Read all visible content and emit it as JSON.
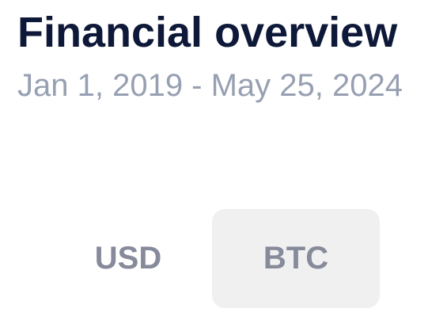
{
  "header": {
    "title": "Financial overview",
    "date_range": "Jan 1, 2019 - May 25, 2024"
  },
  "currency_toggle": {
    "options": [
      {
        "label": "USD",
        "selected": false
      },
      {
        "label": "BTC",
        "selected": true
      }
    ]
  },
  "colors": {
    "title": "#0e1838",
    "subtitle": "#97a0b2",
    "toggle_text": "#868a9b",
    "toggle_selected_bg": "#f0f0f0"
  }
}
